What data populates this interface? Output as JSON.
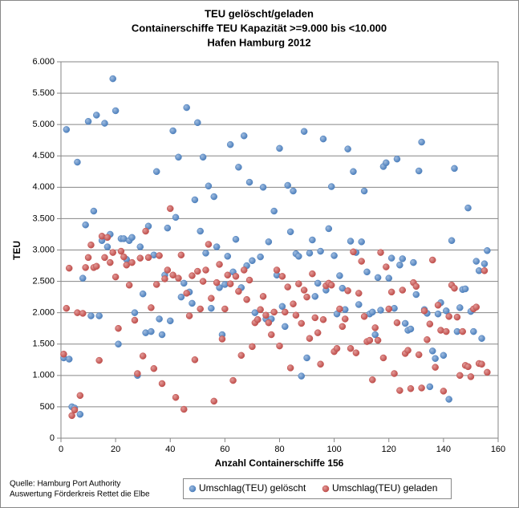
{
  "chart_data": {
    "type": "scatter",
    "title": [
      "TEU gelöscht/geladen",
      "Containerschiffe TEU Kapazität >=9.000  bis <10.000",
      "Hafen Hamburg  2012"
    ],
    "xlabel": "Anzahl Containerschiffe 156",
    "ylabel": "TEU",
    "source": [
      "Quelle: Hamburg Port Authority",
      "Auswertung Förderkreis Rettet die Elbe"
    ],
    "xlim": [
      0,
      160
    ],
    "xticks": [
      0,
      20,
      40,
      60,
      80,
      100,
      120,
      140,
      160
    ],
    "ylim": [
      0,
      6000
    ],
    "yticks": [
      0,
      {
        "value": 500,
        "label": "500"
      },
      {
        "value": 1000,
        "label": "1.000"
      },
      {
        "value": 1500,
        "label": "1.500"
      },
      {
        "value": 2000,
        "label": "2.000"
      },
      {
        "value": 2500,
        "label": "2.500"
      },
      {
        "value": 3000,
        "label": "3.000"
      },
      {
        "value": 3500,
        "label": "3.500"
      },
      {
        "value": 4000,
        "label": "4.000"
      },
      {
        "value": 4500,
        "label": "4.500"
      },
      {
        "value": 5000,
        "label": "5.000"
      },
      {
        "value": 5500,
        "label": "5.500"
      },
      {
        "value": 6000,
        "label": "6.000"
      }
    ],
    "grid": true,
    "legend": "bottom",
    "x": [
      1,
      2,
      3,
      4,
      5,
      6,
      7,
      8,
      9,
      10,
      11,
      12,
      13,
      14,
      15,
      16,
      17,
      18,
      19,
      20,
      21,
      22,
      23,
      24,
      25,
      26,
      27,
      28,
      29,
      30,
      31,
      32,
      33,
      34,
      35,
      36,
      37,
      38,
      39,
      40,
      41,
      42,
      43,
      44,
      45,
      46,
      47,
      48,
      49,
      50,
      51,
      52,
      53,
      54,
      55,
      56,
      57,
      58,
      59,
      60,
      61,
      62,
      63,
      64,
      65,
      66,
      67,
      68,
      69,
      70,
      71,
      72,
      73,
      74,
      75,
      76,
      77,
      78,
      79,
      80,
      81,
      82,
      83,
      84,
      85,
      86,
      87,
      88,
      89,
      90,
      91,
      92,
      93,
      94,
      95,
      96,
      97,
      98,
      99,
      100,
      101,
      102,
      103,
      104,
      105,
      106,
      107,
      108,
      109,
      110,
      111,
      112,
      113,
      114,
      115,
      116,
      117,
      118,
      119,
      120,
      121,
      122,
      123,
      124,
      125,
      126,
      127,
      128,
      129,
      130,
      131,
      132,
      133,
      134,
      135,
      136,
      137,
      138,
      139,
      140,
      141,
      142,
      143,
      144,
      145,
      146,
      147,
      148,
      149,
      150,
      151,
      152,
      153,
      154,
      155,
      156
    ],
    "series": [
      {
        "name": "Umschlag(TEU) gelöscht",
        "color": "#4f81bd",
        "values": [
          1280,
          4920,
          1260,
          500,
          480,
          4400,
          380,
          2550,
          3400,
          5050,
          1950,
          3620,
          5150,
          1950,
          3150,
          5020,
          3050,
          3250,
          5730,
          5220,
          1500,
          3180,
          3180,
          2850,
          3150,
          3200,
          2000,
          1000,
          3050,
          2300,
          1680,
          3380,
          1700,
          2920,
          4250,
          1900,
          1650,
          2600,
          3350,
          1870,
          4900,
          3520,
          4480,
          2250,
          2470,
          5270,
          2330,
          2150,
          3800,
          5030,
          3300,
          4480,
          2950,
          4020,
          2070,
          3850,
          3050,
          2400,
          1650,
          2450,
          2900,
          4680,
          2650,
          3170,
          4320,
          2400,
          4820,
          2750,
          4080,
          2830,
          2000,
          1890,
          2890,
          4000,
          1900,
          3130,
          1900,
          3620,
          2600,
          4620,
          2100,
          1780,
          4030,
          3290,
          3940,
          2940,
          2900,
          990,
          4890,
          1280,
          2950,
          3160,
          2260,
          2470,
          2980,
          4770,
          2360,
          3340,
          4010,
          2910,
          1980,
          2590,
          2390,
          2050,
          4610,
          3140,
          4250,
          2960,
          2130,
          3130,
          3940,
          2650,
          1980,
          2010,
          1650,
          2560,
          2040,
          4330,
          4390,
          2550,
          2870,
          2070,
          4450,
          2760,
          2860,
          1830,
          1720,
          1740,
          2800,
          2290,
          4260,
          4720,
          2050,
          1990,
          820,
          1390,
          1270,
          1980,
          2160,
          1320,
          2030,
          620,
          3150,
          4300,
          1700,
          2080,
          2370,
          2380,
          3670,
          2020,
          1700,
          2820,
          2670,
          1590,
          2780,
          2990
        ]
      },
      {
        "name": "Umschlag(TEU) geladen",
        "color": "#c0504d",
        "values": [
          1340,
          2070,
          2710,
          360,
          450,
          2000,
          680,
          1990,
          2720,
          2880,
          3080,
          2720,
          2740,
          1240,
          3220,
          2880,
          3200,
          2800,
          2960,
          2570,
          1750,
          2980,
          2890,
          2760,
          2440,
          2800,
          1880,
          1030,
          2870,
          1310,
          3300,
          2880,
          2080,
          1110,
          2450,
          2910,
          870,
          2540,
          2680,
          3660,
          2600,
          650,
          2550,
          2920,
          460,
          2310,
          1950,
          2590,
          1250,
          2660,
          2060,
          2500,
          2680,
          3090,
          2230,
          590,
          2480,
          2770,
          1580,
          2060,
          2600,
          2460,
          920,
          2580,
          2340,
          1320,
          2680,
          2210,
          2520,
          1460,
          1840,
          1890,
          2050,
          2260,
          1960,
          1840,
          1650,
          2010,
          2680,
          1470,
          2580,
          2010,
          2410,
          1120,
          2140,
          1960,
          2460,
          1830,
          2360,
          2250,
          1590,
          2620,
          1920,
          1680,
          1180,
          1890,
          2430,
          2470,
          2440,
          1380,
          1430,
          2060,
          1780,
          1900,
          2350,
          1430,
          2970,
          1360,
          2310,
          2820,
          1940,
          1540,
          1560,
          930,
          1760,
          1560,
          2960,
          1280,
          2730,
          2060,
          2330,
          1030,
          1840,
          760,
          2360,
          1350,
          1400,
          790,
          2480,
          2420,
          1330,
          800,
          2030,
          1570,
          1820,
          2840,
          1130,
          2120,
          1720,
          750,
          1700,
          1940,
          2440,
          2390,
          1930,
          1000,
          1700,
          1160,
          1140,
          980,
          2060,
          2090,
          1190,
          1180,
          2670,
          1050
        ]
      }
    ]
  }
}
